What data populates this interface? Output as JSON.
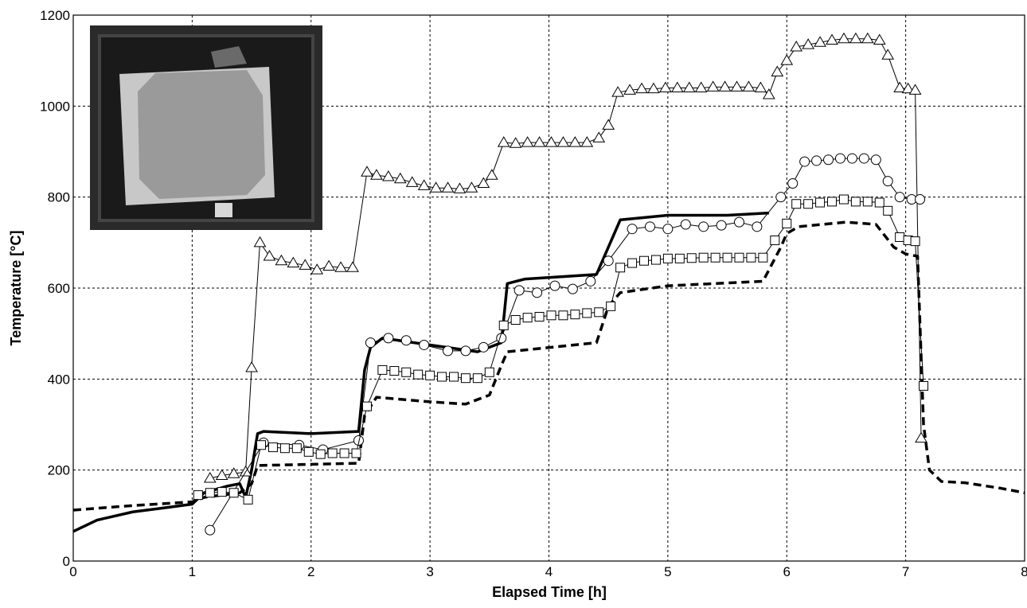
{
  "chart_data": {
    "type": "line",
    "x_label": "Elapsed Time [h]",
    "y_label": "Temperature [°C]",
    "xlim": [
      0,
      8
    ],
    "xticks": [
      0,
      1,
      2,
      3,
      4,
      5,
      6,
      7,
      8
    ],
    "ylim": [
      0,
      1200
    ],
    "yticks": [
      0,
      200,
      400,
      600,
      800,
      1000,
      1200
    ],
    "grid": true,
    "series": [
      {
        "color": "#000000",
        "marker": "none",
        "line_style": "solid",
        "line_width": 3.5,
        "x": [
          0,
          0.2,
          0.5,
          0.8,
          1.0,
          1.1,
          1.3,
          1.4,
          1.45,
          1.5,
          1.55,
          1.6,
          2.0,
          2.4,
          2.45,
          2.5,
          2.6,
          3.0,
          3.4,
          3.6,
          3.65,
          3.8,
          4.4,
          4.5,
          4.6,
          5.0,
          5.5,
          5.85
        ],
        "values": [
          65,
          90,
          108,
          118,
          125,
          150,
          165,
          170,
          140,
          200,
          280,
          285,
          280,
          285,
          420,
          470,
          490,
          475,
          460,
          480,
          610,
          620,
          630,
          690,
          750,
          760,
          760,
          765
        ]
      },
      {
        "color": "#000000",
        "marker": "none",
        "line_style": "dashed",
        "line_width": 3.5,
        "x": [
          0,
          0.5,
          1.0,
          1.1,
          1.4,
          1.5,
          1.55,
          2.4,
          2.45,
          2.55,
          3.0,
          3.3,
          3.5,
          3.6,
          3.65,
          4.4,
          4.5,
          4.6,
          5.0,
          5.8,
          5.95,
          6.0,
          6.1,
          6.5,
          6.75,
          6.9,
          7.0,
          7.1,
          7.15,
          7.2,
          7.3,
          7.5,
          7.8,
          8.0
        ],
        "values": [
          112,
          122,
          130,
          140,
          150,
          170,
          210,
          215,
          320,
          360,
          350,
          345,
          365,
          430,
          460,
          480,
          560,
          590,
          605,
          615,
          690,
          720,
          735,
          745,
          740,
          690,
          675,
          670,
          300,
          200,
          175,
          172,
          160,
          150
        ]
      },
      {
        "color": "#000000",
        "marker": "triangle",
        "line_style": "solid",
        "line_width": 1,
        "x": [
          1.15,
          1.25,
          1.35,
          1.45,
          1.5,
          1.57,
          1.65,
          1.75,
          1.85,
          1.95,
          2.05,
          2.15,
          2.25,
          2.35,
          2.47,
          2.55,
          2.65,
          2.75,
          2.85,
          2.95,
          3.05,
          3.15,
          3.25,
          3.35,
          3.45,
          3.52,
          3.62,
          3.72,
          3.82,
          3.92,
          4.02,
          4.12,
          4.22,
          4.32,
          4.42,
          4.5,
          4.58,
          4.68,
          4.78,
          4.88,
          4.98,
          5.08,
          5.18,
          5.28,
          5.38,
          5.48,
          5.58,
          5.68,
          5.78,
          5.85,
          5.92,
          6.0,
          6.08,
          6.18,
          6.28,
          6.38,
          6.48,
          6.58,
          6.68,
          6.78,
          6.85,
          6.95,
          7.02,
          7.08,
          7.13
        ],
        "values": [
          182,
          188,
          192,
          196,
          425,
          700,
          670,
          660,
          655,
          650,
          640,
          648,
          645,
          645,
          855,
          848,
          845,
          840,
          832,
          825,
          820,
          820,
          818,
          820,
          830,
          848,
          920,
          918,
          920,
          920,
          920,
          920,
          920,
          920,
          930,
          958,
          1030,
          1035,
          1038,
          1038,
          1040,
          1040,
          1040,
          1040,
          1042,
          1042,
          1042,
          1042,
          1040,
          1025,
          1075,
          1100,
          1130,
          1135,
          1140,
          1145,
          1148,
          1148,
          1148,
          1145,
          1112,
          1040,
          1038,
          1035,
          270
        ]
      },
      {
        "color": "#000000",
        "marker": "circle",
        "line_style": "solid",
        "line_width": 1,
        "x": [
          1.15,
          1.6,
          1.9,
          2.1,
          2.4,
          2.5,
          2.65,
          2.8,
          2.95,
          3.15,
          3.3,
          3.45,
          3.6,
          3.75,
          3.9,
          4.05,
          4.2,
          4.35,
          4.5,
          4.7,
          4.85,
          5.0,
          5.15,
          5.3,
          5.45,
          5.6,
          5.75,
          5.95,
          6.05,
          6.15,
          6.25,
          6.35,
          6.45,
          6.55,
          6.65,
          6.75,
          6.85,
          6.95,
          7.05,
          7.12
        ],
        "values": [
          68,
          260,
          255,
          245,
          265,
          480,
          490,
          485,
          475,
          462,
          462,
          470,
          490,
          595,
          590,
          605,
          598,
          615,
          660,
          730,
          735,
          730,
          740,
          735,
          738,
          745,
          735,
          800,
          830,
          878,
          880,
          882,
          885,
          885,
          885,
          882,
          835,
          800,
          795,
          795
        ]
      },
      {
        "color": "#000000",
        "marker": "square",
        "line_style": "solid",
        "line_width": 1,
        "x": [
          1.05,
          1.15,
          1.25,
          1.35,
          1.47,
          1.58,
          1.68,
          1.78,
          1.88,
          1.98,
          2.08,
          2.18,
          2.28,
          2.38,
          2.47,
          2.6,
          2.7,
          2.8,
          2.9,
          3.0,
          3.1,
          3.2,
          3.3,
          3.4,
          3.5,
          3.62,
          3.72,
          3.82,
          3.92,
          4.02,
          4.12,
          4.22,
          4.32,
          4.42,
          4.52,
          4.6,
          4.7,
          4.8,
          4.9,
          5.0,
          5.1,
          5.2,
          5.3,
          5.4,
          5.5,
          5.6,
          5.7,
          5.8,
          5.9,
          6.0,
          6.08,
          6.18,
          6.28,
          6.38,
          6.48,
          6.58,
          6.68,
          6.78,
          6.85,
          6.95,
          7.02,
          7.08,
          7.15
        ],
        "values": [
          145,
          150,
          152,
          150,
          135,
          255,
          250,
          248,
          248,
          240,
          235,
          237,
          237,
          237,
          340,
          420,
          418,
          415,
          410,
          408,
          405,
          405,
          402,
          402,
          415,
          518,
          530,
          535,
          537,
          540,
          540,
          542,
          545,
          547,
          560,
          645,
          655,
          660,
          662,
          665,
          665,
          666,
          667,
          667,
          667,
          667,
          667,
          667,
          705,
          742,
          785,
          785,
          788,
          790,
          795,
          790,
          790,
          788,
          770,
          712,
          705,
          703,
          385
        ]
      }
    ]
  }
}
